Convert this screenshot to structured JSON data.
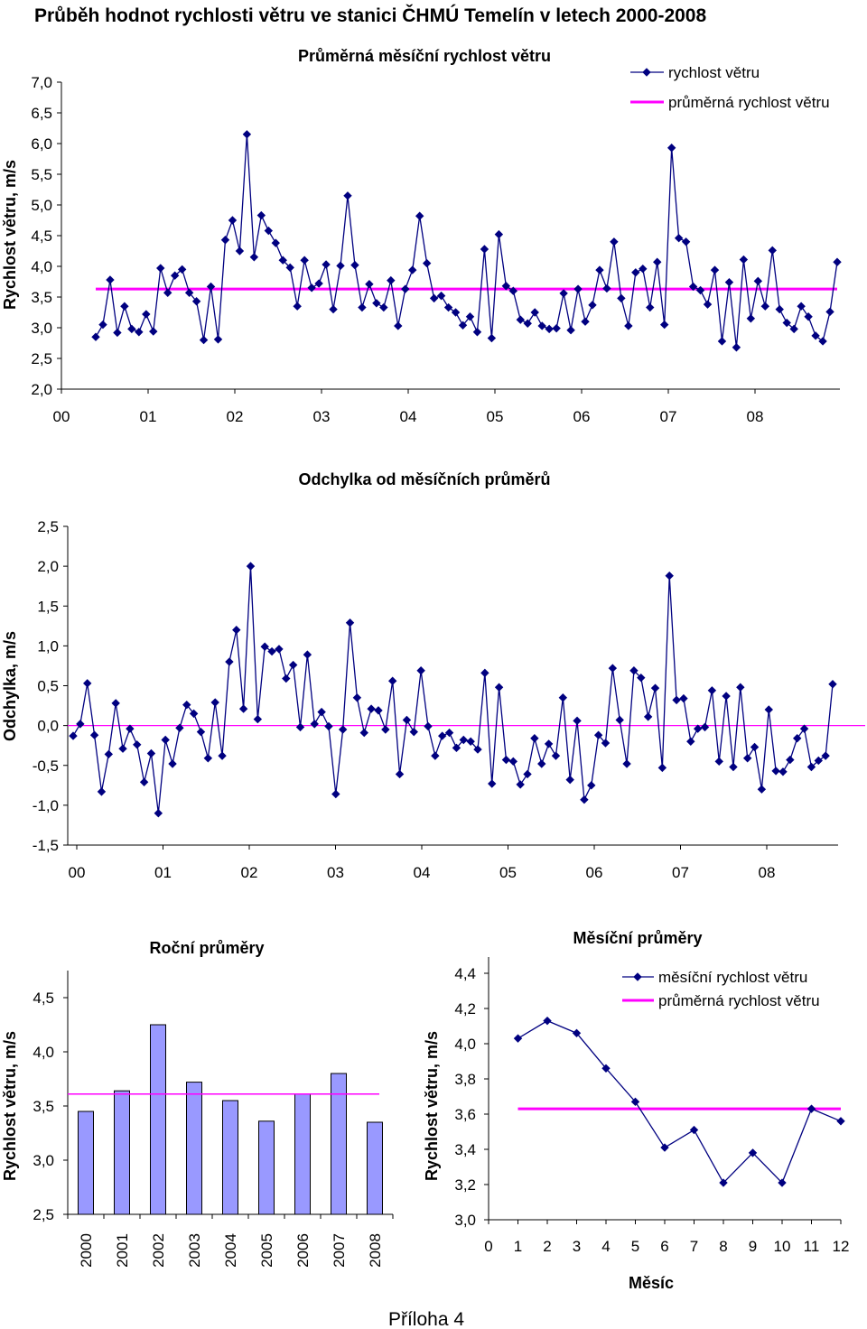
{
  "page": {
    "title": "Průběh hodnot rychlosti větru ve stanici ČHMÚ Temelín v letech 2000-2008",
    "footer": "Příloha 4"
  },
  "colors": {
    "series": "#000080",
    "average": "#ff00ff",
    "bar_fill": "#9999ff",
    "axis": "#000000",
    "frame": "#808080"
  },
  "chart_data": [
    {
      "id": "monthly",
      "type": "line",
      "title": "Průměrná měsíční rychlost větru",
      "ylabel": "Rychlost větru, m/s",
      "xlabel": "",
      "ylim": [
        2.0,
        7.0
      ],
      "yticks": [
        "2,0",
        "2,5",
        "3,0",
        "3,5",
        "4,0",
        "4,5",
        "5,0",
        "5,5",
        "6,0",
        "6,5",
        "7,0"
      ],
      "xticks": [
        "00",
        "01",
        "02",
        "03",
        "04",
        "05",
        "06",
        "07",
        "08"
      ],
      "legend": [
        "rychlost větru",
        "průměrná rychlost větru"
      ],
      "average": 3.63,
      "values": [
        2.85,
        3.05,
        3.78,
        2.92,
        3.35,
        2.98,
        2.93,
        3.22,
        2.94,
        3.97,
        3.57,
        3.85,
        3.95,
        3.57,
        3.43,
        2.8,
        3.67,
        2.81,
        4.43,
        4.75,
        4.25,
        6.15,
        4.15,
        4.83,
        4.58,
        4.38,
        4.1,
        3.98,
        3.35,
        4.1,
        3.65,
        3.72,
        4.03,
        3.3,
        4.01,
        5.15,
        4.02,
        3.33,
        3.71,
        3.4,
        3.33,
        3.77,
        3.03,
        3.63,
        3.94,
        4.82,
        4.05,
        3.48,
        3.52,
        3.33,
        3.25,
        3.04,
        3.18,
        2.93,
        4.28,
        2.83,
        4.52,
        3.68,
        3.6,
        3.13,
        3.07,
        3.25,
        3.03,
        2.98,
        2.99,
        3.56,
        2.96,
        3.63,
        3.1,
        3.37,
        3.94,
        3.64,
        4.4,
        3.48,
        3.03,
        3.9,
        3.96,
        3.33,
        4.07,
        3.05,
        5.93,
        4.46,
        4.4,
        3.67,
        3.61,
        3.38,
        3.94,
        2.78,
        3.74,
        2.68,
        4.11,
        3.15,
        3.76,
        3.35,
        4.26,
        3.3,
        3.08,
        2.98,
        3.35,
        3.18,
        2.87,
        2.78,
        3.26,
        4.07
      ]
    },
    {
      "id": "deviation",
      "type": "line",
      "title": "Odchylka od měsíčních průměrů",
      "ylabel": "Odchylka, m/s",
      "xlabel": "",
      "ylim": [
        -1.5,
        2.5
      ],
      "yticks": [
        "-1,5",
        "-1,0",
        "-0,5",
        "0,0",
        "0,5",
        "1,0",
        "1,5",
        "2,0",
        "2,5"
      ],
      "xticks": [
        "00",
        "01",
        "02",
        "03",
        "04",
        "05",
        "06",
        "07",
        "08"
      ],
      "zero_line": 0,
      "values": [
        -0.13,
        0.02,
        0.53,
        -0.12,
        -0.83,
        -0.36,
        0.28,
        -0.29,
        -0.04,
        -0.24,
        -0.71,
        -0.35,
        -1.1,
        -0.18,
        -0.48,
        -0.03,
        0.26,
        0.15,
        -0.08,
        -0.41,
        0.29,
        -0.38,
        0.8,
        1.2,
        0.21,
        2.0,
        0.08,
        0.99,
        0.93,
        0.96,
        0.59,
        0.76,
        -0.02,
        0.89,
        0.02,
        0.17,
        -0.01,
        -0.86,
        -0.05,
        1.29,
        0.35,
        -0.09,
        0.21,
        0.19,
        -0.05,
        0.56,
        -0.61,
        0.07,
        -0.08,
        0.69,
        -0.01,
        -0.38,
        -0.13,
        -0.09,
        -0.28,
        -0.18,
        -0.2,
        -0.3,
        0.66,
        -0.73,
        0.48,
        -0.43,
        -0.45,
        -0.74,
        -0.61,
        -0.16,
        -0.48,
        -0.23,
        -0.38,
        0.35,
        -0.68,
        0.06,
        -0.93,
        -0.75,
        -0.12,
        -0.22,
        0.72,
        0.07,
        -0.48,
        0.69,
        0.6,
        0.11,
        0.47,
        -0.53,
        1.88,
        0.32,
        0.34,
        -0.2,
        -0.04,
        -0.02,
        0.44,
        -0.45,
        0.37,
        -0.52,
        0.48,
        -0.41,
        -0.27,
        -0.8,
        0.2,
        -0.57,
        -0.58,
        -0.43,
        -0.16,
        -0.04,
        -0.52,
        -0.44,
        -0.38,
        0.52
      ]
    },
    {
      "id": "annual",
      "type": "bar",
      "title": "Roční průměry",
      "ylabel": "Rychlost větru, m/s",
      "xlabel": "",
      "ylim": [
        2.5,
        4.5
      ],
      "yticks": [
        "2,5",
        "3,0",
        "3,5",
        "4,0",
        "4,5"
      ],
      "categories": [
        "2000",
        "2001",
        "2002",
        "2003",
        "2004",
        "2005",
        "2006",
        "2007",
        "2008"
      ],
      "values": [
        3.45,
        3.64,
        4.25,
        3.72,
        3.55,
        3.36,
        3.61,
        3.8,
        3.35
      ],
      "average": 3.61
    },
    {
      "id": "monthly_means",
      "type": "line",
      "title": "Měsíční průměry",
      "ylabel": "Rychlost větru, m/s",
      "xlabel": "Měsíc",
      "ylim": [
        3.0,
        4.4
      ],
      "yticks": [
        "3,0",
        "3,2",
        "3,4",
        "3,6",
        "3,8",
        "4,0",
        "4,2",
        "4,4"
      ],
      "xticks": [
        "0",
        "1",
        "2",
        "3",
        "4",
        "5",
        "6",
        "7",
        "8",
        "9",
        "10",
        "11",
        "12"
      ],
      "legend": [
        "měsíční rychlost větru",
        "průměrná rychlost větru"
      ],
      "x": [
        1,
        2,
        3,
        4,
        5,
        6,
        7,
        8,
        9,
        10,
        11,
        12
      ],
      "values": [
        4.03,
        4.13,
        4.06,
        3.86,
        3.67,
        3.41,
        3.51,
        3.21,
        3.38,
        3.21,
        3.63,
        3.56
      ],
      "average": 3.63
    }
  ]
}
